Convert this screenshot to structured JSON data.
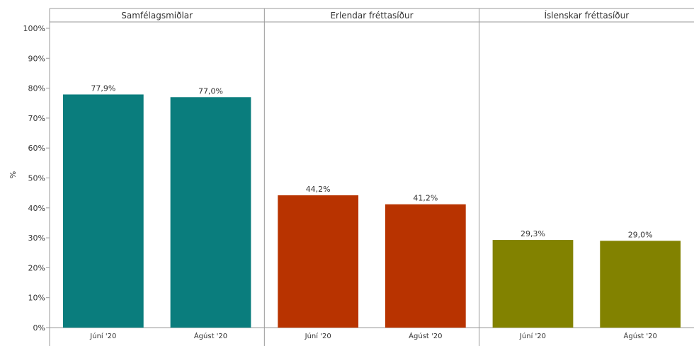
{
  "chart_data": {
    "type": "bar",
    "ylabel": "%",
    "ylim": [
      0,
      100
    ],
    "y_ticks": [
      {
        "value": 0,
        "label": "0%"
      },
      {
        "value": 10,
        "label": "10%"
      },
      {
        "value": 20,
        "label": "20%"
      },
      {
        "value": 30,
        "label": "30%"
      },
      {
        "value": 40,
        "label": "40%"
      },
      {
        "value": 50,
        "label": "50%"
      },
      {
        "value": 60,
        "label": "60%"
      },
      {
        "value": 70,
        "label": "70%"
      },
      {
        "value": 80,
        "label": "80%"
      },
      {
        "value": 90,
        "label": "90%"
      },
      {
        "value": 100,
        "label": "100%"
      }
    ],
    "grid": false,
    "legend": "none",
    "panels": [
      {
        "title": "Samfélagsmiðlar",
        "color": "#0a7d7d",
        "categories": [
          "Júní '20",
          "Ágúst '20"
        ],
        "values": [
          77.9,
          77.0
        ],
        "value_labels": [
          "77,9%",
          "77,0%"
        ]
      },
      {
        "title": "Erlendar fréttasíður",
        "color": "#b83300",
        "categories": [
          "Júní '20",
          "Ágúst '20"
        ],
        "values": [
          44.2,
          41.2
        ],
        "value_labels": [
          "44,2%",
          "41,2%"
        ]
      },
      {
        "title": "Íslenskar fréttasíður",
        "color": "#828200",
        "categories": [
          "Júní '20",
          "Ágúst '20"
        ],
        "values": [
          29.3,
          29.0
        ],
        "value_labels": [
          "29,3%",
          "29,0%"
        ]
      }
    ]
  }
}
